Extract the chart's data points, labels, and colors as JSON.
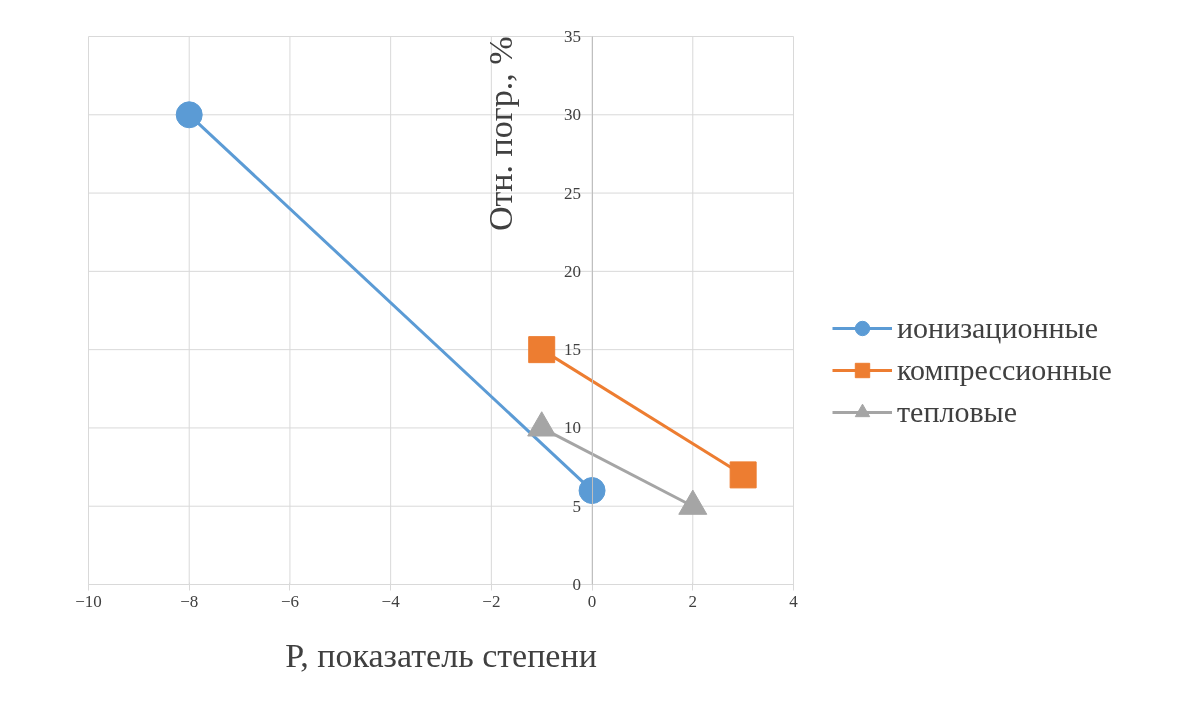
{
  "chart_data": {
    "type": "line",
    "xlabel": "P, показатель степени",
    "ylabel": "Отн. погр., %",
    "xlim": [
      -10,
      4
    ],
    "ylim": [
      0,
      35
    ],
    "xticks": [
      -10,
      -8,
      -6,
      -4,
      -2,
      0,
      2,
      4
    ],
    "yticks": [
      0,
      5,
      10,
      15,
      20,
      25,
      30,
      35
    ],
    "grid": true,
    "legend": "right",
    "line_style": "solid",
    "series": [
      {
        "name": "ионизационные",
        "color": "#5b9bd5",
        "x": [
          -8,
          0
        ],
        "values": [
          30,
          6
        ],
        "marker": "circle"
      },
      {
        "name": "компрессионные",
        "color": "#ed7d31",
        "x": [
          -1,
          3
        ],
        "values": [
          15,
          7
        ],
        "marker": "square"
      },
      {
        "name": "тепловые",
        "color": "#a5a5a5",
        "x": [
          -1,
          2
        ],
        "values": [
          10,
          5
        ],
        "marker": "triangle"
      }
    ]
  }
}
